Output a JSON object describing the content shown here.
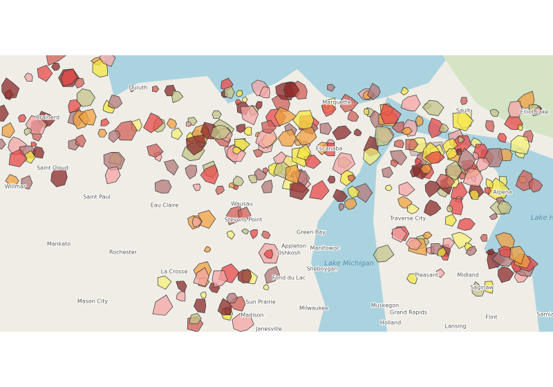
{
  "map": {
    "places": [
      "Duluth",
      "Marquette",
      "Sault",
      "Elliot Lake",
      "Alpena",
      "Escanaba",
      "Traverse City",
      "Brainerd",
      "Saint Cloud",
      "Willmar",
      "Saint Paul",
      "Eau Claire",
      "Wausau",
      "Stevens Point",
      "Green Bay",
      "Manitowoc",
      "Appleton",
      "Oshkosh",
      "Sheboygan",
      "Lake Michigan",
      "Mankato",
      "Rochester",
      "La Crosse",
      "Mason City",
      "Fond du Lac",
      "Sun Prairie",
      "Madison",
      "Milwaukee",
      "Janesville",
      "Muskegon",
      "Grand Rapids",
      "Holland",
      "Lansing",
      "Flint",
      "Saginaw",
      "Midland",
      "Pleasant",
      "Sarnia",
      "Lake H"
    ]
  }
}
